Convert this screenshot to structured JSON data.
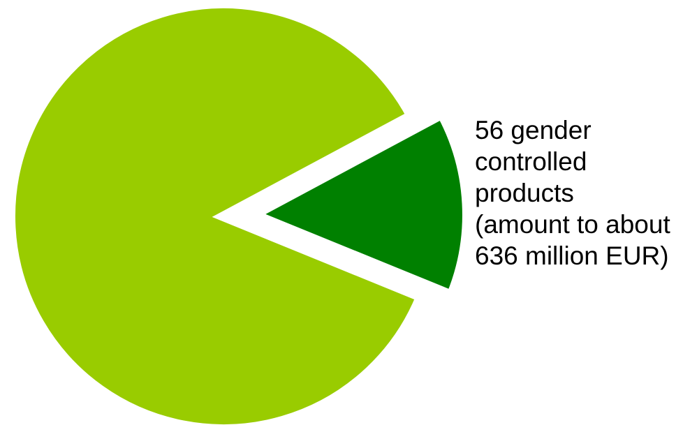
{
  "chart_data": {
    "type": "pie",
    "title": "",
    "slices": [
      {
        "value": 86,
        "color": "#99cc00",
        "exploded": false,
        "label_lines": []
      },
      {
        "value": 14,
        "color": "#008000",
        "exploded": true,
        "label_lines": [
          "56 gender",
          "controlled",
          "products",
          "(amount to about",
          "636 million EUR)"
        ]
      }
    ]
  }
}
